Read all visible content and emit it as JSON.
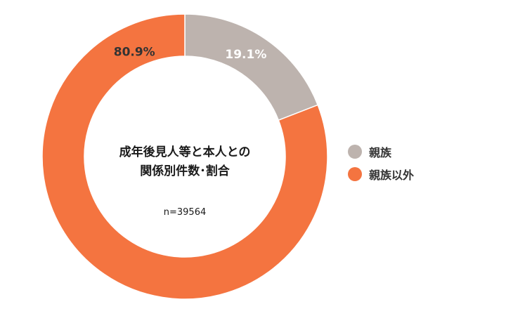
{
  "chart_data": {
    "type": "pie",
    "donut": true,
    "center_title_lines": [
      "成年後見人等と本人との",
      "関係別件数･割合"
    ],
    "center_note": "n=39564",
    "slices": [
      {
        "label": "親族",
        "value": 19.1,
        "value_label": "19.1%",
        "color": "#bdb3ae",
        "label_color": "#ffffff"
      },
      {
        "label": "親族以外",
        "value": 80.9,
        "value_label": "80.9%",
        "color": "#f47440",
        "label_color": "#333333"
      }
    ],
    "legend": {
      "placement": "right",
      "items": [
        {
          "label": "親族",
          "color": "#bdb3ae"
        },
        {
          "label": "親族以外",
          "color": "#f47440"
        }
      ]
    }
  }
}
